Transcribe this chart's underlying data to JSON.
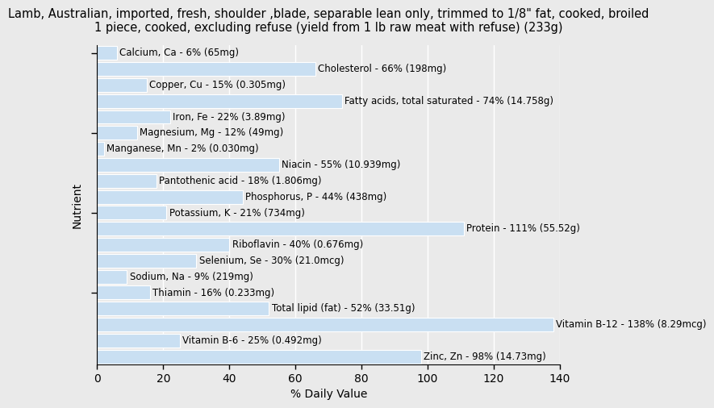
{
  "title": "Lamb, Australian, imported, fresh, shoulder ,blade, separable lean only, trimmed to 1/8\" fat, cooked, broiled\n1 piece, cooked, excluding refuse (yield from 1 lb raw meat with refuse) (233g)",
  "nutrients": [
    "Calcium, Ca - 6% (65mg)",
    "Cholesterol - 66% (198mg)",
    "Copper, Cu - 15% (0.305mg)",
    "Fatty acids, total saturated - 74% (14.758g)",
    "Iron, Fe - 22% (3.89mg)",
    "Magnesium, Mg - 12% (49mg)",
    "Manganese, Mn - 2% (0.030mg)",
    "Niacin - 55% (10.939mg)",
    "Pantothenic acid - 18% (1.806mg)",
    "Phosphorus, P - 44% (438mg)",
    "Potassium, K - 21% (734mg)",
    "Protein - 111% (55.52g)",
    "Riboflavin - 40% (0.676mg)",
    "Selenium, Se - 30% (21.0mcg)",
    "Sodium, Na - 9% (219mg)",
    "Thiamin - 16% (0.233mg)",
    "Total lipid (fat) - 52% (33.51g)",
    "Vitamin B-12 - 138% (8.29mcg)",
    "Vitamin B-6 - 25% (0.492mg)",
    "Zinc, Zn - 98% (14.73mg)"
  ],
  "values": [
    6,
    66,
    15,
    74,
    22,
    12,
    2,
    55,
    18,
    44,
    21,
    111,
    40,
    30,
    9,
    16,
    52,
    138,
    25,
    98
  ],
  "bar_color": "#c9dff2",
  "bar_edge_color": "#c9dff2",
  "background_color": "#eaeaea",
  "plot_bg_color": "#eaeaea",
  "xlabel": "% Daily Value",
  "ylabel": "Nutrient",
  "xlim": [
    0,
    140
  ],
  "xticks": [
    0,
    20,
    40,
    60,
    80,
    100,
    120,
    140
  ],
  "title_fontsize": 10.5,
  "label_fontsize": 8.5,
  "axis_label_fontsize": 10
}
